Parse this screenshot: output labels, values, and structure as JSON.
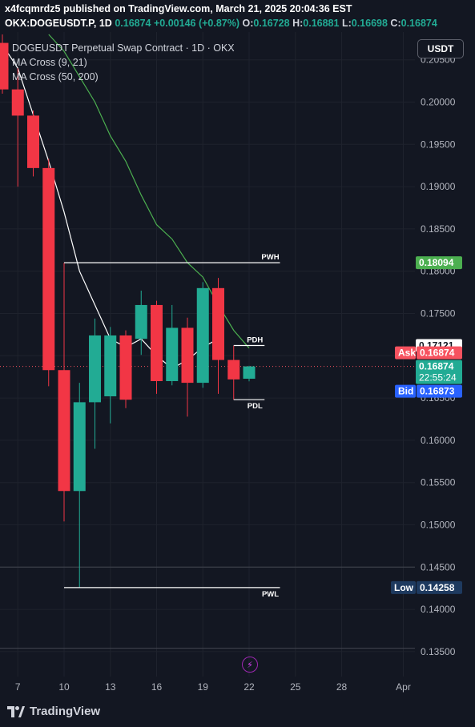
{
  "header": {
    "line1": "x4fcqmrdz5 published on TradingView.com, March 21, 2025 20:04:36 EST",
    "symbol": "OKX:DOGEUSDT.P, 1D",
    "last": "0.16874",
    "change": "+0.00146 (+0.87%)",
    "o_label": "O:",
    "o_val": "0.16728",
    "h_label": "H:",
    "h_val": "0.16881",
    "l_label": "L:",
    "l_val": "0.16698",
    "c_label": "C:",
    "c_val": "0.16874"
  },
  "legend": {
    "title": "DOGEUSDT Perpetual Swap Contract · 1D · OKX",
    "ma1": "MA Cross (9, 21)",
    "ma2": "MA Cross (50, 200)"
  },
  "currency_button": "USDT",
  "footer": {
    "brand": "TradingView",
    "icon": "tradingview-logo-icon"
  },
  "colors": {
    "up": "#22ab94",
    "down": "#f23645",
    "bg": "#131722",
    "ma_fast": "#ffffff",
    "ma_slow": "#4caf50",
    "bid": "#2962ff",
    "ask": "#f7525f",
    "low": "#1e3a5f"
  },
  "chart_data": {
    "type": "candlestick",
    "ylim": [
      0.133,
      0.207
    ],
    "x_ticks": [
      "7",
      "10",
      "13",
      "16",
      "19",
      "22",
      "25",
      "28",
      "Apr"
    ],
    "y_ticks": [
      "0.13500",
      "0.14000",
      "0.14500",
      "0.15000",
      "0.15500",
      "0.16000",
      "0.16500",
      "0.17000",
      "0.17500",
      "0.18000",
      "0.18500",
      "0.19000",
      "0.19500",
      "0.20000",
      "0.20500"
    ],
    "candles": [
      {
        "day": 6,
        "o": 0.207,
        "h": 0.208,
        "l": 0.201,
        "c": 0.2015
      },
      {
        "day": 7,
        "o": 0.2015,
        "h": 0.204,
        "l": 0.19,
        "c": 0.1984
      },
      {
        "day": 8,
        "o": 0.1984,
        "h": 0.199,
        "l": 0.1912,
        "c": 0.1922
      },
      {
        "day": 9,
        "o": 0.1922,
        "h": 0.1933,
        "l": 0.1664,
        "c": 0.1683
      },
      {
        "day": 10,
        "o": 0.1683,
        "h": 0.181,
        "l": 0.1504,
        "c": 0.154
      },
      {
        "day": 11,
        "o": 0.154,
        "h": 0.1668,
        "l": 0.1426,
        "c": 0.1645
      },
      {
        "day": 12,
        "o": 0.1645,
        "h": 0.1744,
        "l": 0.159,
        "c": 0.1724
      },
      {
        "day": 13,
        "o": 0.1652,
        "h": 0.1734,
        "l": 0.162,
        "c": 0.1724
      },
      {
        "day": 14,
        "o": 0.1724,
        "h": 0.173,
        "l": 0.1638,
        "c": 0.1648
      },
      {
        "day": 15,
        "o": 0.172,
        "h": 0.1777,
        "l": 0.1701,
        "c": 0.176
      },
      {
        "day": 16,
        "o": 0.176,
        "h": 0.1765,
        "l": 0.1655,
        "c": 0.167
      },
      {
        "day": 17,
        "o": 0.167,
        "h": 0.176,
        "l": 0.1665,
        "c": 0.1733
      },
      {
        "day": 18,
        "o": 0.1733,
        "h": 0.1745,
        "l": 0.1628,
        "c": 0.1668
      },
      {
        "day": 19,
        "o": 0.1668,
        "h": 0.1787,
        "l": 0.1662,
        "c": 0.178
      },
      {
        "day": 20,
        "o": 0.178,
        "h": 0.1792,
        "l": 0.1655,
        "c": 0.1695
      },
      {
        "day": 21,
        "o": 0.1695,
        "h": 0.1712,
        "l": 0.1648,
        "c": 0.1672
      },
      {
        "day": 22,
        "o": 0.16728,
        "h": 0.16881,
        "l": 0.16698,
        "c": 0.16874
      }
    ],
    "ma_fast": [
      [
        6,
        0.2068
      ],
      [
        7,
        0.204
      ],
      [
        8,
        0.1985
      ],
      [
        9,
        0.193
      ],
      [
        10,
        0.187
      ],
      [
        11,
        0.18
      ],
      [
        12,
        0.176
      ],
      [
        13,
        0.172
      ],
      [
        14,
        0.171
      ],
      [
        15,
        0.172
      ],
      [
        16,
        0.17
      ],
      [
        17,
        0.1685
      ],
      [
        18,
        0.1695
      ],
      [
        19,
        0.171
      ],
      [
        20,
        0.172
      ]
    ],
    "ma_slow": [
      [
        9,
        0.208
      ],
      [
        10,
        0.206
      ],
      [
        11,
        0.203
      ],
      [
        12,
        0.2
      ],
      [
        13,
        0.196
      ],
      [
        14,
        0.193
      ],
      [
        15,
        0.189
      ],
      [
        16,
        0.1855
      ],
      [
        17,
        0.1838
      ],
      [
        18,
        0.181
      ],
      [
        19,
        0.1793
      ],
      [
        20,
        0.176
      ],
      [
        21,
        0.173
      ],
      [
        22,
        0.1709
      ]
    ],
    "levels": [
      {
        "label": "PWH",
        "value": 0.181,
        "from": 10,
        "to": 24,
        "tag": "0.18094",
        "tag_color": "#4caf50"
      },
      {
        "label": "PDH",
        "value": 0.17121,
        "from": 21,
        "to": 23,
        "tag": "0.17121",
        "tag_color": "#ffffff"
      },
      {
        "label": "PDL",
        "value": 0.1648,
        "from": 21,
        "to": 23,
        "tag": "",
        "tag_color": ""
      },
      {
        "label": "PWL",
        "value": 0.14258,
        "from": 10,
        "to": 24,
        "tag": "",
        "tag_color": ""
      }
    ],
    "hlines": [
      0.145,
      0.1354
    ],
    "price_line": 0.16874,
    "labels": {
      "ask_label": "Ask",
      "ask": "0.16874",
      "last": "0.16874",
      "countdown": "22:55:24",
      "bid_label": "Bid",
      "bid": "0.16873",
      "low_label": "Low",
      "low": "0.14258"
    }
  }
}
